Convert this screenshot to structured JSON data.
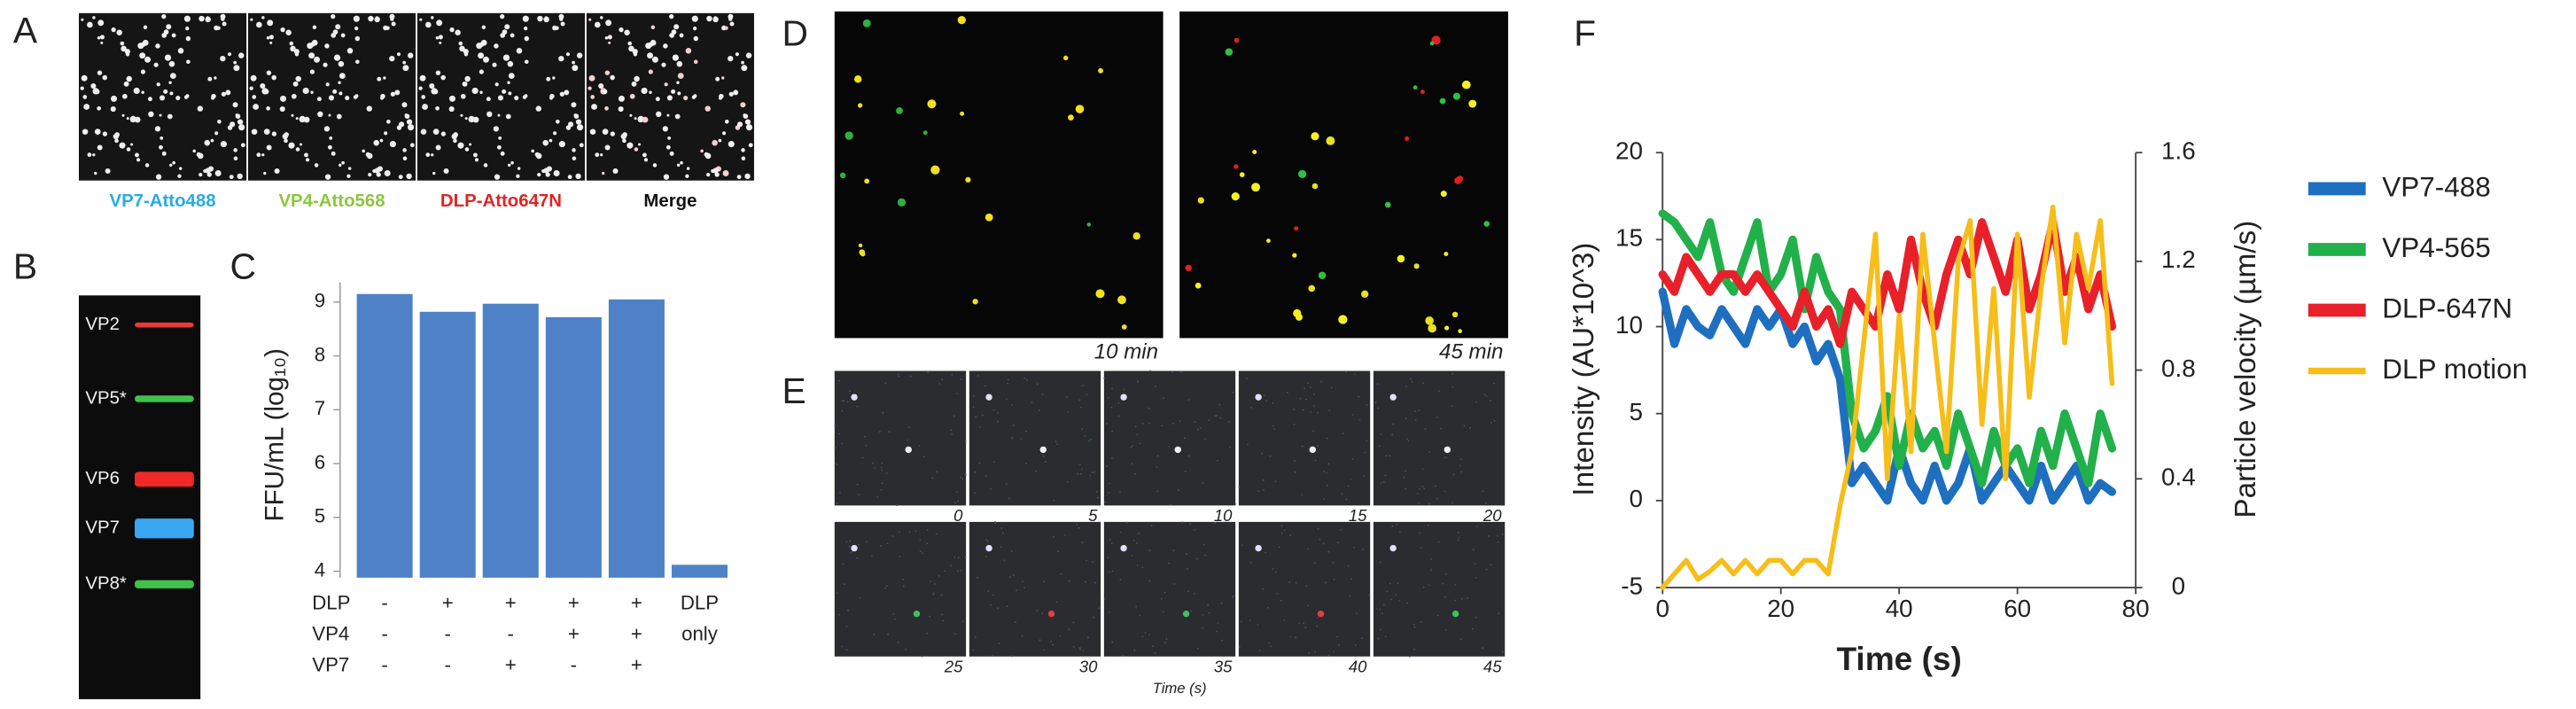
{
  "panel_labels": [
    "A",
    "B",
    "C",
    "D",
    "E",
    "F"
  ],
  "panel_a": {
    "channels": [
      {
        "label": "VP7-Atto488",
        "color": "#29abe2"
      },
      {
        "label": "VP4-Atto568",
        "color": "#8cc63f"
      },
      {
        "label": "DLP-Atto647N",
        "color": "#e02424"
      },
      {
        "label": "Merge",
        "color": "#111111"
      }
    ]
  },
  "panel_b": {
    "bands": [
      {
        "label": "VP2",
        "color": "#e83a3a"
      },
      {
        "label": "VP5*",
        "color": "#3fc24a"
      },
      {
        "label": "VP6",
        "color": "#f02828"
      },
      {
        "label": "VP7",
        "color": "#3aa8f0"
      },
      {
        "label": "VP8*",
        "color": "#3fc24a"
      }
    ]
  },
  "panel_d": {
    "times": [
      "10 min",
      "45 min"
    ]
  },
  "panel_e": {
    "times": [
      "0",
      "5",
      "10",
      "15",
      "20",
      "25",
      "30",
      "35",
      "40",
      "45"
    ],
    "axis_label": "Time (s)"
  },
  "chart_data": [
    {
      "type": "bar",
      "y_label": "FFU/mL (log₁₀)",
      "values": [
        9.15,
        8.82,
        8.97,
        8.72,
        9.05,
        4.12
      ],
      "color": "#4f81c7",
      "ylim": [
        3.88,
        9.6
      ],
      "yticks": [
        4,
        5,
        6,
        7,
        8,
        9
      ],
      "row_labels": [
        "DLP",
        "VP4",
        "VP7"
      ],
      "conditions": [
        [
          "-",
          "-",
          "-"
        ],
        [
          "+",
          "-",
          "-"
        ],
        [
          "+",
          "-",
          "+"
        ],
        [
          "+",
          "+",
          "-"
        ],
        [
          "+",
          "+",
          "+"
        ],
        [
          "DLP",
          "only",
          null
        ]
      ]
    },
    {
      "type": "line",
      "x_label": "Time (s)",
      "y_label": "Intensity (AU*10^3)",
      "y2_label": "Particle velocity (µm/s)",
      "x": [
        0,
        2,
        4,
        6,
        8,
        10,
        12,
        14,
        16,
        18,
        20,
        22,
        24,
        26,
        28,
        30,
        32,
        34,
        36,
        38,
        40,
        42,
        44,
        46,
        48,
        50,
        52,
        54,
        56,
        58,
        60,
        62,
        64,
        66,
        68,
        70,
        72,
        74,
        76
      ],
      "series": [
        {
          "name": "VP7-488",
          "color": "#1f6fc0",
          "values": [
            12,
            9,
            11,
            10,
            9.5,
            11,
            10,
            9,
            11,
            10,
            11,
            9,
            10,
            8,
            9,
            7,
            1,
            2,
            1,
            0,
            3,
            1,
            0,
            2,
            0,
            1,
            3,
            0,
            1,
            2,
            1,
            0,
            2,
            0,
            1,
            2,
            0,
            1,
            0.5
          ]
        },
        {
          "name": "VP4-565",
          "color": "#22b04a",
          "values": [
            16.5,
            16,
            15,
            14,
            16,
            13,
            12,
            14,
            16,
            12,
            13,
            15,
            11,
            14,
            12,
            11,
            5,
            3,
            4,
            6,
            2,
            5,
            3,
            4,
            2,
            5,
            3,
            1,
            4,
            2,
            3,
            1,
            4,
            2,
            5,
            3,
            1,
            5,
            3
          ]
        },
        {
          "name": "DLP-647N",
          "color": "#e8202a",
          "values": [
            13,
            12,
            14,
            13,
            12,
            13,
            13,
            12,
            13,
            12,
            11,
            10,
            12,
            10,
            11,
            9,
            12,
            11,
            10,
            13,
            11,
            15,
            12,
            10,
            13,
            15,
            13,
            16,
            14,
            12,
            15,
            11,
            13,
            16,
            12,
            14,
            11,
            13,
            10
          ]
        },
        {
          "name": "DLP motion",
          "color": "#f6be1a",
          "axis": "y2",
          "values": [
            0,
            0.05,
            0.1,
            0.03,
            0.06,
            0.1,
            0.05,
            0.1,
            0.05,
            0.1,
            0.1,
            0.05,
            0.1,
            0.1,
            0.05,
            0.3,
            0.5,
            0.9,
            1.3,
            0.4,
            1.0,
            0.5,
            1.3,
            0.9,
            0.5,
            1.2,
            1.35,
            0.6,
            1.1,
            0.4,
            1.3,
            0.7,
            1.1,
            1.4,
            0.9,
            1.3,
            1.1,
            1.35,
            0.75
          ]
        }
      ],
      "xlim": [
        0,
        80
      ],
      "xticks": [
        0,
        20,
        40,
        60,
        80
      ],
      "ylim": [
        -5,
        20
      ],
      "yticks": [
        -5,
        0,
        5,
        10,
        15,
        20
      ],
      "y2lim": [
        0,
        1.6
      ],
      "y2ticks": [
        0,
        0.4,
        0.8,
        1.2,
        1.6
      ],
      "legend": "right"
    }
  ]
}
